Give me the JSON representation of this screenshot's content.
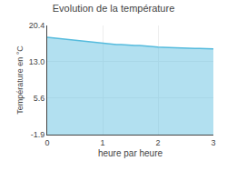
{
  "chart_data": {
    "type": "area",
    "title": "Evolution de la température",
    "xlabel": "heure par heure",
    "ylabel": "Température en °C",
    "color": "#55bbdd",
    "x": [
      0.0,
      0.083,
      0.167,
      0.25,
      0.333,
      0.417,
      0.5,
      0.583,
      0.667,
      0.75,
      0.833,
      0.917,
      1.0,
      1.083,
      1.167,
      1.25,
      1.333,
      1.417,
      1.5,
      1.583,
      1.667,
      1.75,
      1.833,
      1.917,
      2.0,
      2.083,
      2.167,
      2.25,
      2.333,
      2.417,
      2.5,
      2.583,
      2.667,
      2.75,
      2.833,
      2.917,
      3.0
    ],
    "values": [
      18.0,
      17.9,
      17.8,
      17.7,
      17.6,
      17.5,
      17.4,
      17.3,
      17.2,
      17.1,
      17.0,
      16.9,
      16.7,
      16.6,
      16.6,
      16.5,
      16.5,
      16.4,
      16.4,
      16.3,
      16.3,
      16.2,
      16.2,
      16.1,
      16.0,
      15.95,
      15.9,
      15.85,
      15.8,
      15.8,
      15.75,
      15.75,
      15.7,
      15.7,
      15.65,
      15.65,
      15.6
    ],
    "xlim": [
      0,
      3
    ],
    "xticks": [
      0,
      1,
      2,
      3
    ],
    "ylim": [
      -1.9,
      20.4
    ],
    "yticks": [
      -1.9,
      5.6,
      {
        "value": 13.0,
        "label": "13.0"
      },
      20.4
    ],
    "grid": true
  }
}
